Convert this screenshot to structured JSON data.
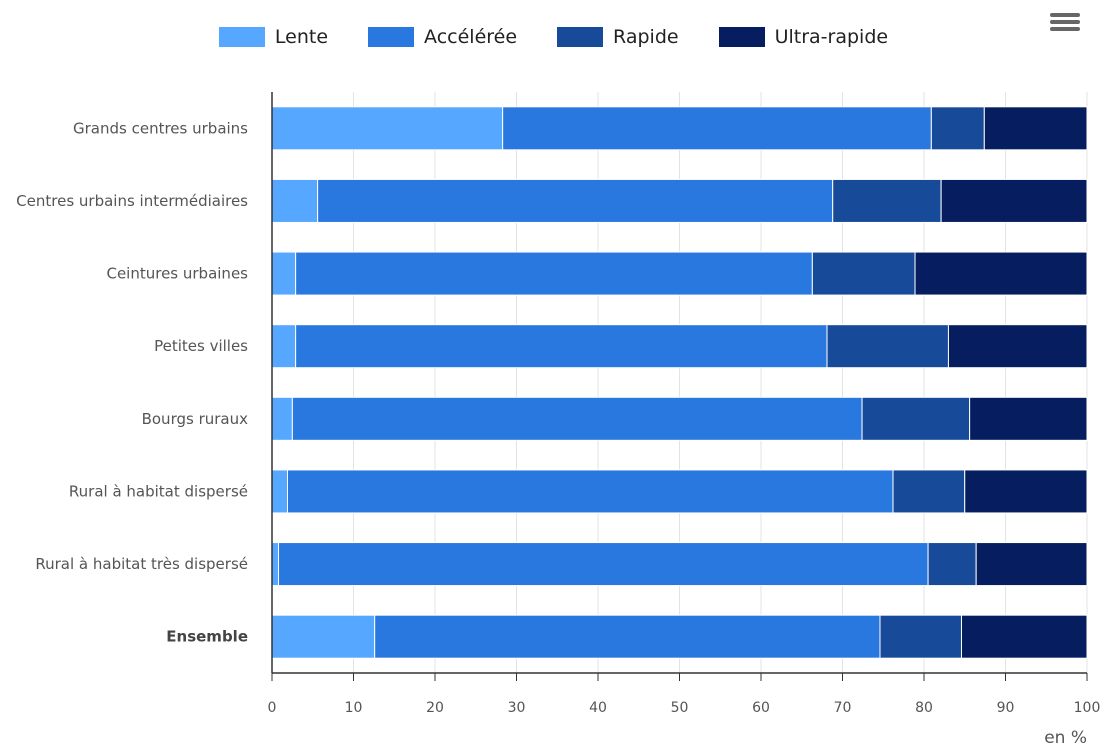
{
  "legend": {
    "items": [
      {
        "label": "Lente",
        "color": "#55a7ff"
      },
      {
        "label": "Accélérée",
        "color": "#2878e0"
      },
      {
        "label": "Rapide",
        "color": "#174a98"
      },
      {
        "label": "Ultra-rapide",
        "color": "#061e5f"
      }
    ]
  },
  "menu": {
    "icon": "hamburger-menu-icon"
  },
  "chart_data": {
    "type": "bar",
    "orientation": "horizontal",
    "stacked": true,
    "categories": [
      "Grands centres urbains",
      "Centres urbains intermédiaires",
      "Ceintures urbaines",
      "Petites villes",
      "Bourgs ruraux",
      "Rural à habitat dispersé",
      "Rural à habitat très dispersé",
      "Ensemble"
    ],
    "emphasized_category": "Ensemble",
    "series": [
      {
        "name": "Lente",
        "color": "#55a7ff",
        "values": [
          28.3,
          5.6,
          2.9,
          2.9,
          2.5,
          1.9,
          0.8,
          12.6
        ]
      },
      {
        "name": "Accélérée",
        "color": "#2878e0",
        "values": [
          52.6,
          63.2,
          63.4,
          65.2,
          69.9,
          74.3,
          79.7,
          62.0
        ]
      },
      {
        "name": "Rapide",
        "color": "#174a98",
        "values": [
          6.5,
          13.3,
          12.6,
          14.9,
          13.2,
          8.8,
          5.9,
          10.0
        ]
      },
      {
        "name": "Ultra-rapide",
        "color": "#061e5f",
        "values": [
          12.6,
          17.9,
          21.1,
          17.0,
          14.4,
          15.0,
          13.6,
          15.4
        ]
      }
    ],
    "x_ticks": [
      0,
      10,
      20,
      30,
      40,
      50,
      60,
      70,
      80,
      90,
      100
    ],
    "xlim": [
      0,
      100
    ],
    "xlabel": "en %",
    "grid": "vertical",
    "legend_position": "top-center"
  }
}
